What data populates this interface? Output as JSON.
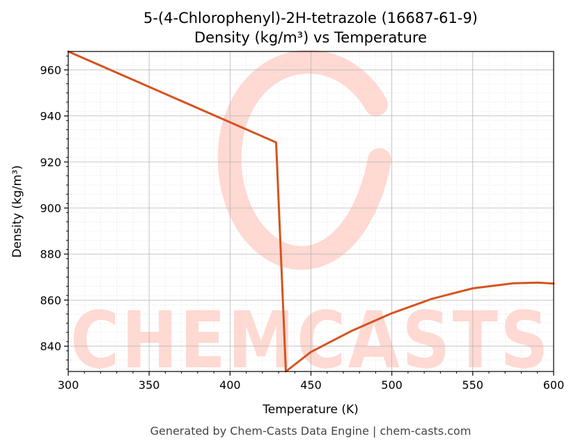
{
  "chart_data": {
    "type": "line",
    "title_line1": "5-(4-Chlorophenyl)-2H-tetrazole (16687-61-9)",
    "title_line2": "Density (kg/m³) vs Temperature",
    "xlabel": "Temperature (K)",
    "ylabel": "Density (kg/m³)",
    "xlim": [
      300,
      600
    ],
    "ylim": [
      829,
      968
    ],
    "xticks": [
      300,
      350,
      400,
      450,
      500,
      550,
      600
    ],
    "yticks": [
      840,
      860,
      880,
      900,
      920,
      940,
      960
    ],
    "grid": true,
    "series": [
      {
        "color": "#d4541f",
        "x": [
          300,
          428.5,
          434.5,
          450,
          475,
          500,
          525,
          550,
          575,
          590,
          600
        ],
        "y": [
          968,
          928.5,
          829,
          837.5,
          846.6,
          854.3,
          860.6,
          865.1,
          867.3,
          867.6,
          867.2
        ]
      }
    ]
  },
  "watermark": {
    "text": "CHEMCASTS",
    "color": "#ffd9d2"
  },
  "footer": "Generated by Chem-Casts Data Engine | chem-casts.com"
}
